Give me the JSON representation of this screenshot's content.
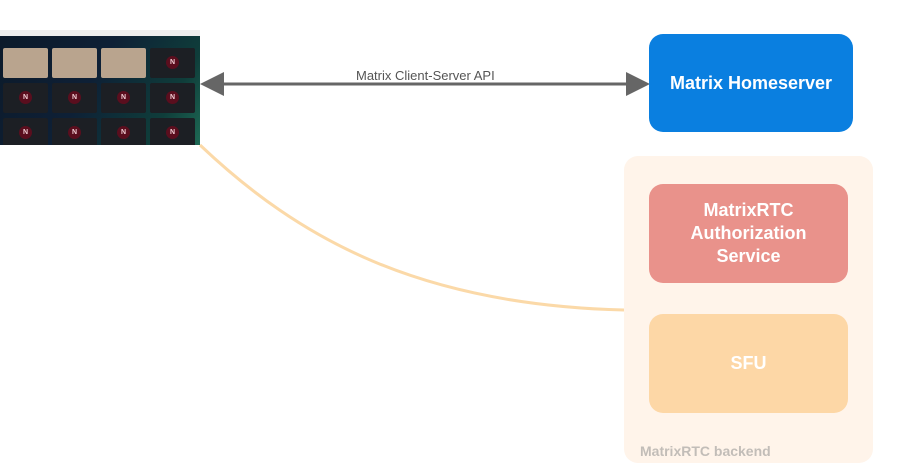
{
  "nodes": {
    "homeserver": "Matrix Homeserver",
    "auth_service": "MatrixRTC Authorization Service",
    "sfu": "SFU",
    "backend_group": "MatrixRTC backend"
  },
  "edges": {
    "client_server_api": "Matrix Client-Server API"
  },
  "thumbnail": {
    "tile_initial": "N"
  },
  "colors": {
    "homeserver": "#0a7fe0",
    "auth_service": "#e9928b",
    "sfu": "#fdd7a6",
    "backend_group": "#fff4ea",
    "sfu_link": "#fbd9a8",
    "api_arrow": "#666666"
  }
}
